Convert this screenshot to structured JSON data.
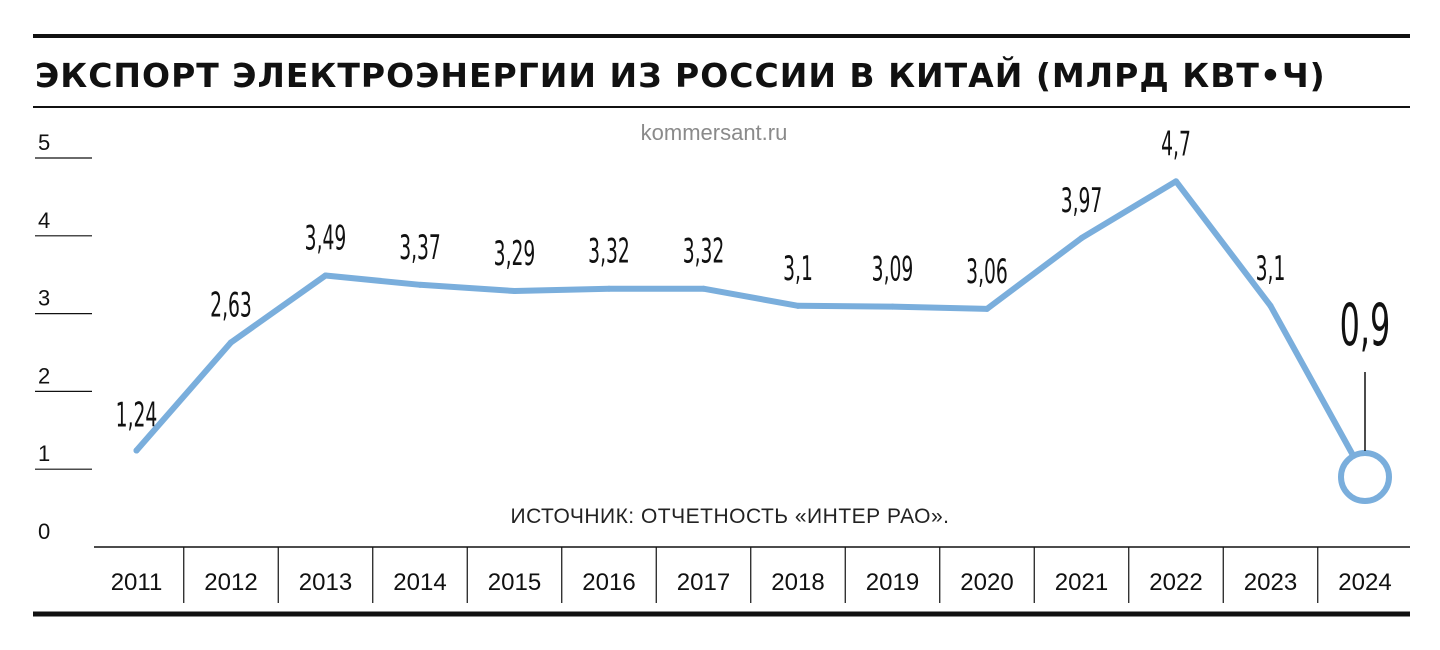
{
  "title": "ЭКСПОРТ ЭЛЕКТРОЭНЕРГИИ ИЗ РОССИИ В КИТАЙ (МЛРД КВТ•Ч)",
  "watermark": "kommersant.ru",
  "source": "ИСТОЧНИК: ОТЧЕТНОСТЬ «ИНТЕР РАО».",
  "colors": {
    "line": "#7aaedc",
    "text": "#111111",
    "rule": "#111111"
  },
  "chart_data": {
    "type": "line",
    "title": "ЭКСПОРТ ЭЛЕКТРОЭНЕРГИИ ИЗ РОССИИ В КИТАЙ (МЛРД КВТ•Ч)",
    "xlabel": "",
    "ylabel": "",
    "categories": [
      "2011",
      "2012",
      "2013",
      "2014",
      "2015",
      "2016",
      "2017",
      "2018",
      "2019",
      "2020",
      "2021",
      "2022",
      "2023",
      "2024"
    ],
    "values": [
      1.24,
      2.63,
      3.49,
      3.37,
      3.29,
      3.32,
      3.32,
      3.1,
      3.09,
      3.06,
      3.97,
      4.7,
      3.1,
      0.9
    ],
    "data_labels": [
      "1,24",
      "2,63",
      "3,49",
      "3,37",
      "3,29",
      "3,32",
      "3,32",
      "3,1",
      "3,09",
      "3,06",
      "3,97",
      "4,7",
      "3,1",
      "0,9"
    ],
    "ylim": [
      0,
      5
    ],
    "yticks": [
      "0",
      "1",
      "2",
      "3",
      "4",
      "5"
    ],
    "grid": false,
    "highlight": {
      "category": "2024",
      "marker": "circle"
    }
  }
}
